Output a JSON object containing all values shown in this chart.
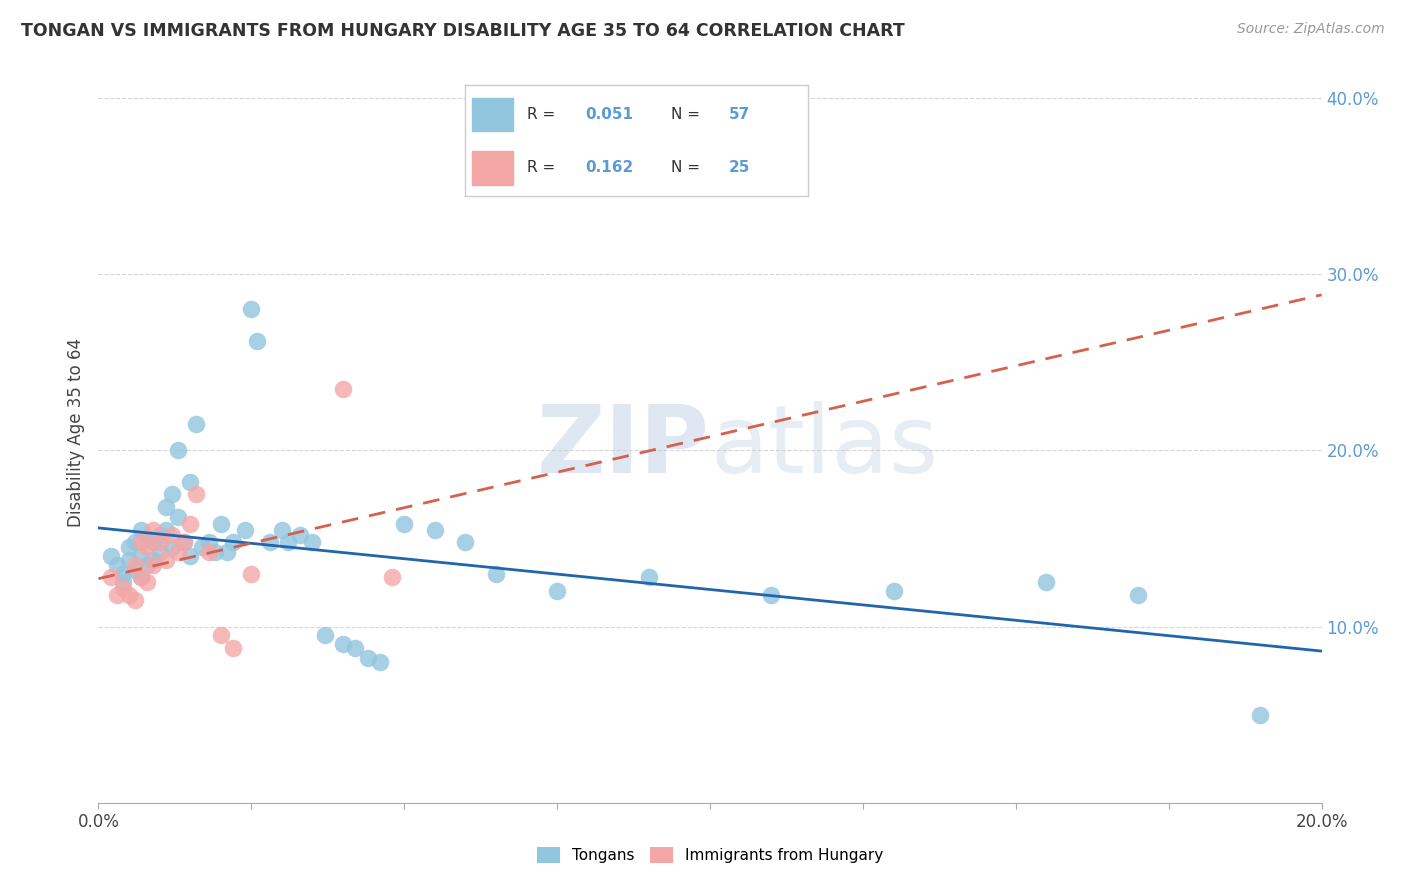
{
  "title": "TONGAN VS IMMIGRANTS FROM HUNGARY DISABILITY AGE 35 TO 64 CORRELATION CHART",
  "source": "Source: ZipAtlas.com",
  "ylabel_label": "Disability Age 35 to 64",
  "x_min": 0.0,
  "x_max": 0.2,
  "y_min": 0.0,
  "y_max": 0.42,
  "x_ticks": [
    0.0,
    0.025,
    0.05,
    0.075,
    0.1,
    0.125,
    0.15,
    0.175,
    0.2
  ],
  "y_ticks": [
    0.0,
    0.1,
    0.2,
    0.3,
    0.4
  ],
  "tongans_color": "#92c5de",
  "hungary_color": "#f4a6a6",
  "trendline_tongan_color": "#2166ac",
  "trendline_hungary_color": "#d6604d",
  "watermark": "ZIPatlas",
  "tongans_x": [
    0.002,
    0.003,
    0.004,
    0.004,
    0.005,
    0.005,
    0.006,
    0.006,
    0.007,
    0.007,
    0.007,
    0.008,
    0.008,
    0.009,
    0.009,
    0.01,
    0.01,
    0.011,
    0.011,
    0.012,
    0.012,
    0.013,
    0.013,
    0.014,
    0.015,
    0.015,
    0.016,
    0.017,
    0.018,
    0.019,
    0.02,
    0.021,
    0.022,
    0.024,
    0.025,
    0.026,
    0.028,
    0.03,
    0.031,
    0.033,
    0.035,
    0.037,
    0.04,
    0.042,
    0.044,
    0.046,
    0.05,
    0.055,
    0.06,
    0.065,
    0.075,
    0.09,
    0.11,
    0.13,
    0.155,
    0.17,
    0.19
  ],
  "tongans_y": [
    0.14,
    0.135,
    0.125,
    0.13,
    0.145,
    0.138,
    0.148,
    0.132,
    0.155,
    0.14,
    0.128,
    0.15,
    0.135,
    0.148,
    0.138,
    0.142,
    0.152,
    0.168,
    0.155,
    0.175,
    0.145,
    0.2,
    0.162,
    0.148,
    0.182,
    0.14,
    0.215,
    0.145,
    0.148,
    0.142,
    0.158,
    0.142,
    0.148,
    0.155,
    0.28,
    0.262,
    0.148,
    0.155,
    0.148,
    0.152,
    0.148,
    0.095,
    0.09,
    0.088,
    0.082,
    0.08,
    0.158,
    0.155,
    0.148,
    0.13,
    0.12,
    0.128,
    0.118,
    0.12,
    0.125,
    0.118,
    0.05
  ],
  "hungary_x": [
    0.002,
    0.003,
    0.004,
    0.005,
    0.006,
    0.006,
    0.007,
    0.007,
    0.008,
    0.008,
    0.009,
    0.009,
    0.01,
    0.011,
    0.012,
    0.013,
    0.014,
    0.015,
    0.016,
    0.018,
    0.02,
    0.022,
    0.025,
    0.04,
    0.048
  ],
  "hungary_y": [
    0.128,
    0.118,
    0.122,
    0.118,
    0.135,
    0.115,
    0.148,
    0.128,
    0.145,
    0.125,
    0.155,
    0.135,
    0.148,
    0.138,
    0.152,
    0.142,
    0.148,
    0.158,
    0.175,
    0.142,
    0.095,
    0.088,
    0.13,
    0.235,
    0.128
  ]
}
